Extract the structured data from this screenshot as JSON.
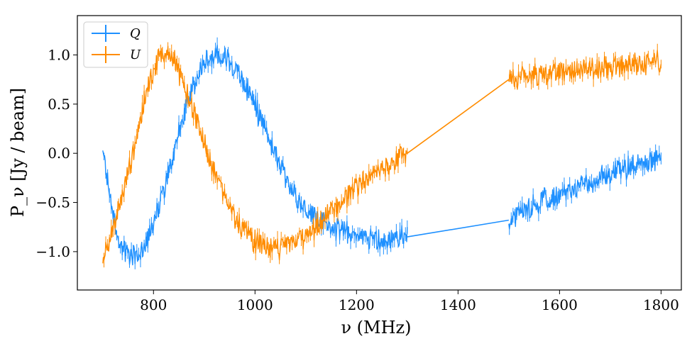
{
  "chart_data": {
    "type": "line",
    "title": "",
    "xlabel": "ν (MHz)",
    "ylabel": "P_ν [Jy / beam]",
    "xlim": [
      650,
      1840
    ],
    "ylim": [
      -1.39,
      1.4
    ],
    "xticks": [
      800,
      1000,
      1200,
      1400,
      1600,
      1800
    ],
    "yticks": [
      -1.0,
      -0.5,
      0.0,
      0.5,
      1.0
    ],
    "xtick_labels": [
      "800",
      "1000",
      "1200",
      "1400",
      "1600",
      "1800"
    ],
    "ytick_labels": [
      "−1.0",
      "−0.5",
      "0.0",
      "0.5",
      "1.0"
    ],
    "legend": {
      "placement": "top-left",
      "entries": [
        "Q",
        "U"
      ]
    },
    "grid": false,
    "noise_amplitude": 0.13,
    "series": [
      {
        "name": "Q",
        "color": "#1e90ff",
        "segments": [
          {
            "x": [
              700,
              710,
              720,
              730,
              745,
              760,
              775,
              790,
              810,
              830,
              850,
              870,
              890,
              910,
              930,
              950,
              970,
              990,
              1010,
              1030,
              1050,
              1070,
              1090,
              1110,
              1130,
              1150,
              1170,
              1190,
              1210,
              1230,
              1250,
              1270,
              1290,
              1300
            ],
            "y": [
              0.0,
              -0.3,
              -0.6,
              -0.85,
              -1.0,
              -1.05,
              -1.0,
              -0.85,
              -0.55,
              -0.2,
              0.2,
              0.55,
              0.85,
              0.97,
              1.0,
              0.95,
              0.8,
              0.6,
              0.35,
              0.1,
              -0.15,
              -0.35,
              -0.5,
              -0.6,
              -0.7,
              -0.75,
              -0.8,
              -0.82,
              -0.85,
              -0.85,
              -0.9,
              -0.88,
              -0.85,
              -0.85
            ]
          },
          {
            "x": [
              1500,
              1550,
              1600,
              1650,
              1700,
              1750,
              1800
            ],
            "y": [
              -0.68,
              -0.52,
              -0.42,
              -0.32,
              -0.2,
              -0.12,
              -0.05
            ]
          }
        ]
      },
      {
        "name": "U",
        "color": "#ff8c00",
        "segments": [
          {
            "x": [
              700,
              715,
              730,
              750,
              770,
              790,
              810,
              825,
              840,
              860,
              880,
              900,
              920,
              940,
              960,
              980,
              1000,
              1020,
              1040,
              1060,
              1080,
              1100,
              1120,
              1140,
              1160,
              1180,
              1200,
              1220,
              1240,
              1260,
              1280,
              1300
            ],
            "y": [
              -1.05,
              -0.85,
              -0.6,
              -0.2,
              0.25,
              0.7,
              0.97,
              1.05,
              0.95,
              0.7,
              0.4,
              0.1,
              -0.2,
              -0.45,
              -0.65,
              -0.8,
              -0.9,
              -0.95,
              -0.97,
              -0.95,
              -0.9,
              -0.85,
              -0.75,
              -0.65,
              -0.55,
              -0.45,
              -0.35,
              -0.28,
              -0.2,
              -0.12,
              -0.05,
              0.0
            ]
          },
          {
            "x": [
              1500,
              1550,
              1600,
              1650,
              1700,
              1750,
              1800
            ],
            "y": [
              0.75,
              0.8,
              0.82,
              0.85,
              0.88,
              0.9,
              0.93
            ]
          }
        ]
      }
    ]
  }
}
